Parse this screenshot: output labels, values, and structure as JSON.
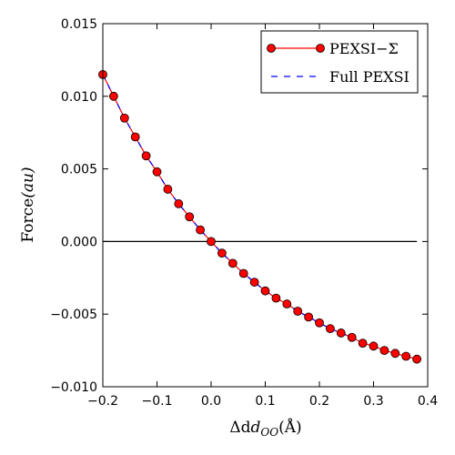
{
  "chart_data": {
    "type": "line",
    "xlabel": "Δd",
    "xlabel_sub": "OO",
    "xlabel_unit": "(Å)",
    "ylabel": "Force",
    "ylabel_unit": "(au)",
    "xlim": [
      -0.2,
      0.4
    ],
    "ylim": [
      -0.01,
      0.015
    ],
    "xticks": [
      -0.2,
      -0.1,
      0.0,
      0.1,
      0.2,
      0.3,
      0.4
    ],
    "xtick_labels": [
      "−0.2",
      "−0.1",
      "0.0",
      "0.1",
      "0.2",
      "0.3",
      "0.4"
    ],
    "yticks": [
      -0.01,
      -0.005,
      0.0,
      0.005,
      0.01,
      0.015
    ],
    "ytick_labels": [
      "−0.010",
      "−0.005",
      "0.000",
      "0.005",
      "0.010",
      "0.015"
    ],
    "zero_line": {
      "y": 0,
      "x_range": [
        -0.2,
        0.38
      ],
      "color": "#000000"
    },
    "grid": false,
    "legend_position": "top-right",
    "x": [
      -0.2,
      -0.18,
      -0.16,
      -0.14,
      -0.12,
      -0.1,
      -0.08,
      -0.06,
      -0.04,
      -0.02,
      0.0,
      0.02,
      0.04,
      0.06,
      0.08,
      0.1,
      0.12,
      0.14,
      0.16,
      0.18,
      0.2,
      0.22,
      0.24,
      0.26,
      0.28,
      0.3,
      0.32,
      0.34,
      0.36,
      0.38
    ],
    "series": [
      {
        "name": "PEXSI−Σ",
        "style": "line-marker",
        "color": "#ff0000",
        "values": [
          0.0115,
          0.01,
          0.0085,
          0.0072,
          0.0059,
          0.0048,
          0.0036,
          0.0026,
          0.0017,
          0.0008,
          0.0,
          -0.0008,
          -0.0015,
          -0.0022,
          -0.0028,
          -0.0034,
          -0.0039,
          -0.0043,
          -0.0048,
          -0.0052,
          -0.0056,
          -0.006,
          -0.0063,
          -0.0066,
          -0.007,
          -0.0072,
          -0.0075,
          -0.0077,
          -0.0079,
          -0.0081
        ]
      },
      {
        "name": "Full PEXSI",
        "style": "dashed",
        "color": "#0000ff",
        "values": [
          0.0115,
          0.01,
          0.0085,
          0.0072,
          0.0059,
          0.0048,
          0.0036,
          0.0026,
          0.0017,
          0.0008,
          0.0,
          -0.0008,
          -0.0015,
          -0.0022,
          -0.0028,
          -0.0034,
          -0.0039,
          -0.0043,
          -0.0048,
          -0.0052,
          -0.0056,
          -0.006,
          -0.0063,
          -0.0066,
          -0.007,
          -0.0072,
          -0.0075,
          -0.0077,
          -0.0079,
          -0.0081
        ]
      }
    ]
  }
}
